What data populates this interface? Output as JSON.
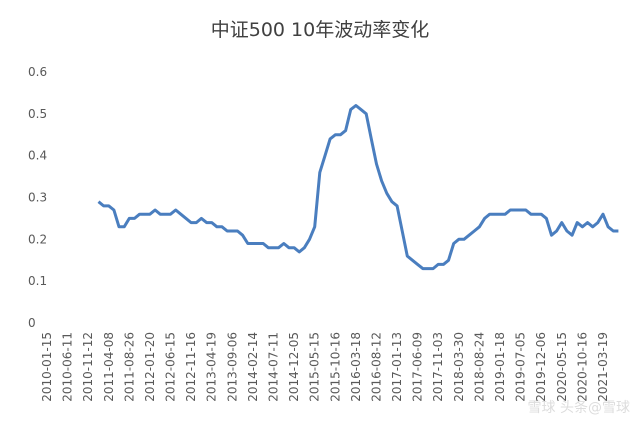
{
  "chart_data": {
    "type": "line",
    "title": "中证500 10年波动率变化",
    "categories": [
      "2010-01-15",
      null,
      null,
      null,
      "2010-06-11",
      null,
      null,
      null,
      "2010-11-12",
      null,
      null,
      null,
      "2011-04-08",
      null,
      null,
      null,
      "2011-08-26",
      null,
      null,
      null,
      "2012-01-20",
      null,
      null,
      null,
      "2012-06-15",
      null,
      null,
      null,
      "2012-11-16",
      null,
      null,
      null,
      "2013-04-19",
      null,
      null,
      null,
      "2013-09-06",
      null,
      null,
      null,
      "2014-02-14",
      null,
      null,
      null,
      "2014-07-11",
      null,
      null,
      null,
      "2014-12-05",
      null,
      null,
      null,
      "2015-05-15",
      null,
      null,
      null,
      "2015-10-16",
      null,
      null,
      null,
      "2016-03-18",
      null,
      null,
      null,
      "2016-08-12",
      null,
      null,
      null,
      "2017-01-13",
      null,
      null,
      null,
      "2017-06-09",
      null,
      null,
      null,
      "2017-11-03",
      null,
      null,
      null,
      "2018-03-30",
      null,
      null,
      null,
      "2018-08-24",
      null,
      null,
      null,
      "2019-01-18",
      null,
      null,
      null,
      "2019-07-05",
      null,
      null,
      null,
      "2019-12-06",
      null,
      null,
      null,
      "2020-05-15",
      null,
      null,
      null,
      "2020-10-16",
      null,
      null,
      null,
      "2021-03-19",
      null,
      null,
      null
    ],
    "values": [
      null,
      null,
      null,
      null,
      null,
      null,
      null,
      null,
      null,
      null,
      0.29,
      0.28,
      0.28,
      0.27,
      0.23,
      0.23,
      0.25,
      0.25,
      0.26,
      0.26,
      0.26,
      0.27,
      0.26,
      0.26,
      0.26,
      0.27,
      0.26,
      0.25,
      0.24,
      0.24,
      0.25,
      0.24,
      0.24,
      0.23,
      0.23,
      0.22,
      0.22,
      0.22,
      0.21,
      0.19,
      0.19,
      0.19,
      0.19,
      0.18,
      0.18,
      0.18,
      0.19,
      0.18,
      0.18,
      0.17,
      0.18,
      0.2,
      0.23,
      0.36,
      0.4,
      0.44,
      0.45,
      0.45,
      0.46,
      0.51,
      0.52,
      0.51,
      0.5,
      0.44,
      0.38,
      0.34,
      0.31,
      0.29,
      0.28,
      0.22,
      0.16,
      0.15,
      0.14,
      0.13,
      0.13,
      0.13,
      0.14,
      0.14,
      0.15,
      0.19,
      0.2,
      0.2,
      0.21,
      0.22,
      0.23,
      0.25,
      0.26,
      0.26,
      0.26,
      0.26,
      0.27,
      0.27,
      0.27,
      0.27,
      0.26,
      0.26,
      0.26,
      0.25,
      0.21,
      0.22,
      0.24,
      0.22,
      0.21,
      0.24,
      0.23,
      0.24,
      0.23,
      0.24,
      0.26,
      0.23,
      0.22,
      0.22
    ],
    "color": "#4a7ebf",
    "ylim": [
      0,
      0.6
    ],
    "yticks": [
      0,
      0.1,
      0.2,
      0.3,
      0.4,
      0.5,
      0.6
    ],
    "grid": false,
    "watermark": "雪球 头条@雪球"
  }
}
